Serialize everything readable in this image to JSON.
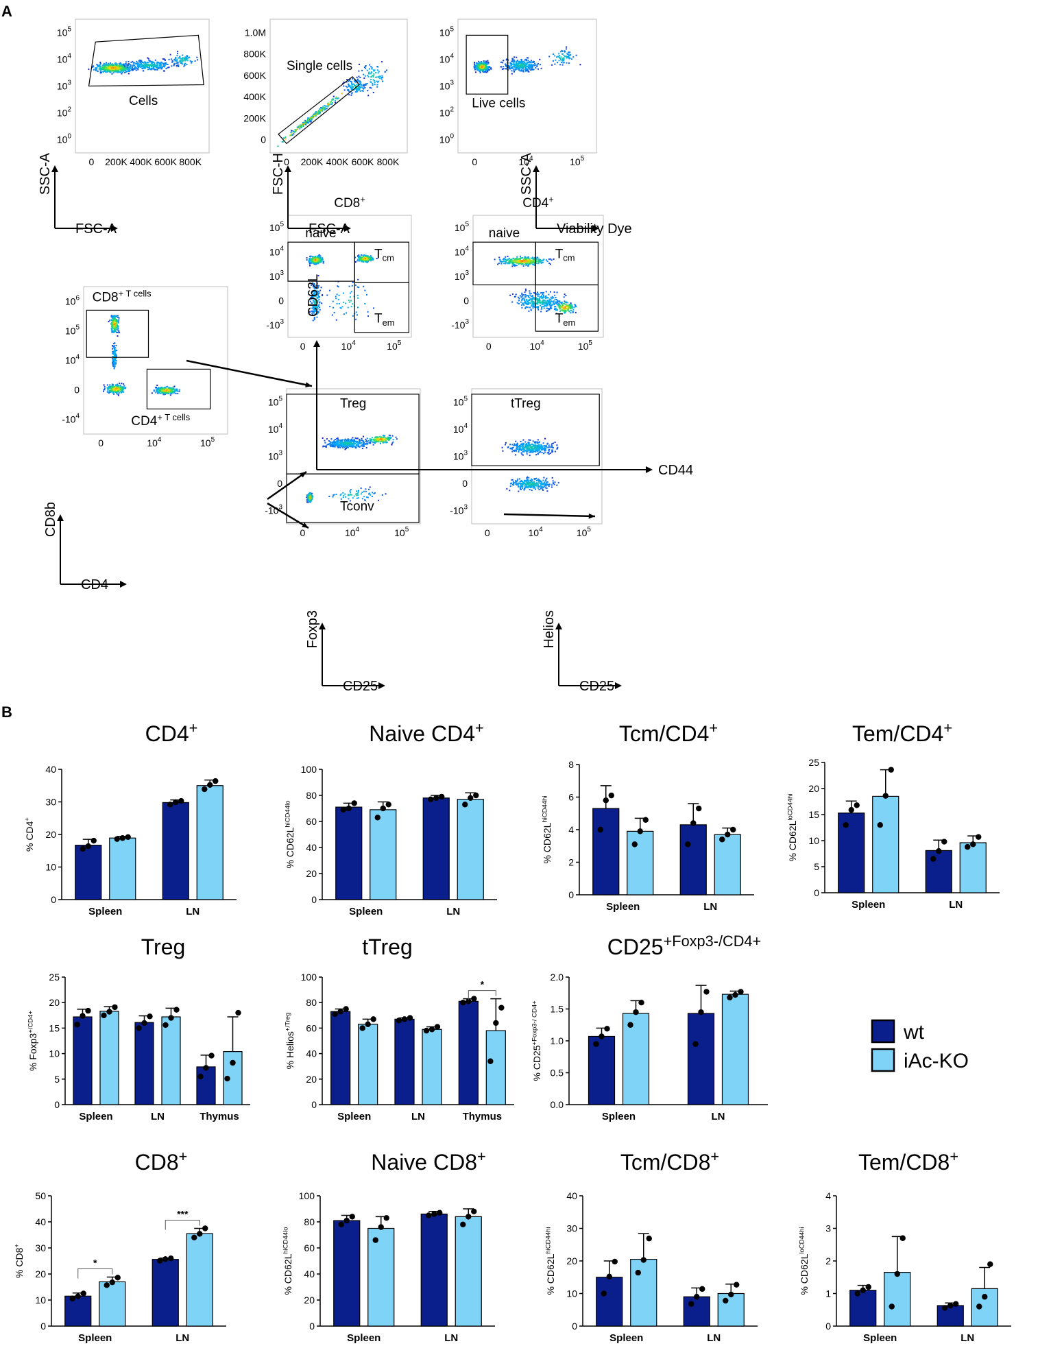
{
  "panel_labels": {
    "a": "A",
    "b": "B"
  },
  "colors": {
    "wt": "#0A1E8C",
    "ko": "#7FD3F7",
    "ink": "#000000",
    "gate": "#000000"
  },
  "flow": {
    "plots": [
      {
        "id": "cells",
        "ylabel": "SSC-A",
        "xlabel": "FSC-A",
        "yticks": [
          "10^5",
          "10^4",
          "10^3",
          "10^2",
          "10^0"
        ],
        "xticks": [
          "0",
          "200K",
          "400K",
          "600K",
          "800K"
        ],
        "gates": [
          {
            "label": "Cells"
          }
        ]
      },
      {
        "id": "single",
        "ylabel": "FSC-H",
        "xlabel": "FSC-A",
        "yticks": [
          "1.0M",
          "800K",
          "600K",
          "400K",
          "200K",
          "0"
        ],
        "xticks": [
          "0",
          "200K",
          "400K",
          "600K",
          "800K"
        ],
        "gates": [
          {
            "label": "Single cells"
          }
        ]
      },
      {
        "id": "live",
        "ylabel": "SSC-A",
        "xlabel": "Viability Dye",
        "yticks": [
          "10^5",
          "10^4",
          "10^3",
          "10^2",
          "10^0"
        ],
        "xticks": [
          "0",
          "10^4",
          "10^5"
        ],
        "gates": [
          {
            "label": "Live cells"
          }
        ]
      },
      {
        "id": "cd8cd4",
        "ylabel": "CD8b",
        "xlabel": "CD4",
        "yticks": [
          "10^6",
          "10^5",
          "10^4",
          "0",
          "-10^4"
        ],
        "xticks": [
          "0",
          "10^4",
          "10^5"
        ],
        "gates": [
          {
            "label": "CD8^+ T cells"
          },
          {
            "label": "CD4^+ T cells"
          }
        ]
      },
      {
        "id": "cd8mem",
        "title": "CD8^+",
        "ylabel": "CD62L",
        "xlabel": "",
        "yticks": [
          "10^5",
          "10^4",
          "10^3",
          "0",
          "-10^3"
        ],
        "xticks": [
          "0",
          "10^4",
          "10^5"
        ],
        "gates": [
          {
            "label": "naive"
          },
          {
            "label": "T_cm"
          },
          {
            "label": "T_em"
          }
        ]
      },
      {
        "id": "cd4mem",
        "title": "CD4^+",
        "ylabel": "",
        "xlabel": "CD44",
        "yticks": [
          "10^5",
          "10^4",
          "10^3",
          "0",
          "-10^3"
        ],
        "xticks": [
          "0",
          "10^4",
          "10^5"
        ],
        "gates": [
          {
            "label": "naive"
          },
          {
            "label": "T_cm"
          },
          {
            "label": "T_em"
          }
        ]
      },
      {
        "id": "treg",
        "ylabel": "Foxp3",
        "xlabel": "CD25",
        "yticks": [
          "10^5",
          "10^4",
          "10^3",
          "0",
          "-10^3"
        ],
        "xticks": [
          "0",
          "10^4",
          "10^5"
        ],
        "gates": [
          {
            "label": "Treg"
          },
          {
            "label": "Tconv"
          }
        ]
      },
      {
        "id": "ttreg",
        "ylabel": "Helios",
        "xlabel": "CD25",
        "yticks": [
          "10^5",
          "10^4",
          "10^3",
          "0",
          "-10^3"
        ],
        "xticks": [
          "0",
          "10^4",
          "10^5"
        ],
        "gates": [
          {
            "label": "tTreg"
          }
        ]
      }
    ]
  },
  "legend": [
    {
      "label": "wt",
      "color": "#0A1E8C"
    },
    {
      "label": "iAc-KO",
      "color": "#7FD3F7"
    }
  ],
  "chart_data": [
    {
      "type": "bar",
      "title": "CD4^+",
      "ylabel": "% CD4^+",
      "ylim": [
        0,
        40
      ],
      "ticks": [
        0,
        10,
        20,
        30,
        40
      ],
      "categories": [
        "Spleen",
        "LN"
      ],
      "series": [
        {
          "name": "wt",
          "values": [
            16.7,
            29.8
          ],
          "sd": [
            1.8,
            0.8
          ],
          "points": [
            [
              15.6,
              16.4,
              18.1
            ],
            [
              29.2,
              29.9,
              30.3
            ]
          ]
        },
        {
          "name": "iAc-KO",
          "values": [
            18.9,
            35.0
          ],
          "sd": [
            0.5,
            1.7
          ],
          "points": [
            [
              18.6,
              18.9,
              19.2
            ],
            [
              33.9,
              35.2,
              36.4
            ]
          ]
        }
      ],
      "sig": []
    },
    {
      "type": "bar",
      "title": "Naive CD4^+",
      "ylabel": "% CD62L^hiCD44^lo",
      "ylim": [
        0,
        100
      ],
      "ticks": [
        0,
        20,
        40,
        60,
        80,
        100
      ],
      "categories": [
        "Spleen",
        "LN"
      ],
      "series": [
        {
          "name": "wt",
          "values": [
            71,
            78
          ],
          "sd": [
            3,
            2
          ],
          "points": [
            [
              69,
              70,
              74
            ],
            [
              77,
              78,
              79
            ]
          ]
        },
        {
          "name": "iAc-KO",
          "values": [
            69,
            77
          ],
          "sd": [
            6,
            5
          ],
          "points": [
            [
              63,
              70,
              73
            ],
            [
              73,
              78,
              80
            ]
          ]
        }
      ],
      "sig": []
    },
    {
      "type": "bar",
      "title": "Tcm/CD4^+",
      "ylabel": "% CD62L^hiCD44^hi",
      "ylim": [
        0,
        8
      ],
      "ticks": [
        0,
        2,
        4,
        6,
        8
      ],
      "categories": [
        "Spleen",
        "LN"
      ],
      "series": [
        {
          "name": "wt",
          "values": [
            5.3,
            4.3
          ],
          "sd": [
            1.4,
            1.3
          ],
          "points": [
            [
              4.0,
              5.8,
              6.1
            ],
            [
              3.1,
              4.4,
              5.3
            ]
          ]
        },
        {
          "name": "iAc-KO",
          "values": [
            3.9,
            3.7
          ],
          "sd": [
            0.8,
            0.4
          ],
          "points": [
            [
              3.1,
              3.9,
              4.6
            ],
            [
              3.4,
              3.7,
              4.0
            ]
          ]
        }
      ],
      "sig": []
    },
    {
      "type": "bar",
      "title": "Tem/CD4^+",
      "ylabel": "% CD62L^loCD44^hi",
      "ylim": [
        0,
        25
      ],
      "ticks": [
        0,
        5,
        10,
        15,
        20,
        25
      ],
      "categories": [
        "Spleen",
        "LN"
      ],
      "series": [
        {
          "name": "wt",
          "values": [
            15.3,
            8.1
          ],
          "sd": [
            2.3,
            2.0
          ],
          "points": [
            [
              13.0,
              15.9,
              16.8
            ],
            [
              6.5,
              8.0,
              9.8
            ]
          ]
        },
        {
          "name": "iAc-KO",
          "values": [
            18.5,
            9.6
          ],
          "sd": [
            5.1,
            1.3
          ],
          "points": [
            [
              13.0,
              18.6,
              23.6
            ],
            [
              8.8,
              9.3,
              10.7
            ]
          ]
        }
      ],
      "sig": []
    },
    {
      "type": "bar",
      "title": "Treg",
      "ylabel": "% Foxp3^+/CD4^+",
      "ylim": [
        0,
        25
      ],
      "ticks": [
        0,
        5,
        10,
        15,
        20,
        25
      ],
      "categories": [
        "Spleen",
        "LN",
        "Thymus"
      ],
      "series": [
        {
          "name": "wt",
          "values": [
            17.2,
            16.1,
            7.4
          ],
          "sd": [
            1.5,
            1.3,
            2.3
          ],
          "points": [
            [
              15.7,
              17.4,
              18.4
            ],
            [
              15.0,
              16.0,
              17.3
            ],
            [
              5.5,
              7.2,
              9.6
            ]
          ]
        },
        {
          "name": "iAc-KO",
          "values": [
            18.3,
            17.2,
            10.4
          ],
          "sd": [
            0.9,
            1.7,
            6.8
          ],
          "points": [
            [
              17.5,
              18.2,
              19.1
            ],
            [
              15.6,
              17.0,
              18.6
            ],
            [
              5.1,
              8.2,
              18.0
            ]
          ]
        }
      ],
      "sig": []
    },
    {
      "type": "bar",
      "title": "tTreg",
      "ylabel": "% Helios^+/Treg",
      "ylim": [
        0,
        100
      ],
      "ticks": [
        0,
        20,
        40,
        60,
        80,
        100
      ],
      "categories": [
        "Spleen",
        "LN",
        "Thymus"
      ],
      "series": [
        {
          "name": "wt",
          "values": [
            73,
            67,
            81
          ],
          "sd": [
            2,
            1,
            2
          ],
          "points": [
            [
              71,
              73,
              75
            ],
            [
              66,
              67,
              68
            ],
            [
              80,
              81,
              83
            ]
          ]
        },
        {
          "name": "iAc-KO",
          "values": [
            63,
            59,
            58
          ],
          "sd": [
            4,
            2,
            25
          ],
          "points": [
            [
              60,
              63,
              67
            ],
            [
              58,
              59,
              61
            ],
            [
              34,
              64,
              76
            ]
          ]
        }
      ],
      "sig": [
        {
          "group": 2,
          "label": "*"
        }
      ]
    },
    {
      "type": "bar",
      "title": "CD25^+Foxp3^-/CD4^+",
      "ylabel": "% CD25^+Foxp3^-/ CD4^+",
      "ylim": [
        0,
        2.0
      ],
      "ticks": [
        "0.0",
        "0.5",
        "1.0",
        "1.5",
        "2.0"
      ],
      "categories": [
        "Spleen",
        "LN"
      ],
      "series": [
        {
          "name": "wt",
          "values": [
            1.07,
            1.43
          ],
          "sd": [
            0.13,
            0.44
          ],
          "points": [
            [
              0.95,
              1.07,
              1.19
            ],
            [
              0.95,
              1.45,
              1.77
            ]
          ]
        },
        {
          "name": "iAc-KO",
          "values": [
            1.43,
            1.73
          ],
          "sd": [
            0.2,
            0.05
          ],
          "points": [
            [
              1.25,
              1.45,
              1.6
            ],
            [
              1.68,
              1.72,
              1.77
            ]
          ]
        }
      ],
      "sig": []
    },
    {
      "type": "bar",
      "title": "CD8^+",
      "ylabel": "% CD8^+",
      "ylim": [
        0,
        50
      ],
      "ticks": [
        0,
        10,
        20,
        30,
        40,
        50
      ],
      "categories": [
        "Spleen",
        "LN"
      ],
      "series": [
        {
          "name": "wt",
          "values": [
            11.5,
            25.6
          ],
          "sd": [
            1.2,
            0.5
          ],
          "points": [
            [
              10.6,
              11.4,
              12.5
            ],
            [
              25.1,
              25.7,
              26.0
            ]
          ]
        },
        {
          "name": "iAc-KO",
          "values": [
            17.0,
            35.5
          ],
          "sd": [
            1.8,
            2.0
          ],
          "points": [
            [
              15.7,
              16.8,
              18.6
            ],
            [
              34.0,
              35.4,
              37.5
            ]
          ]
        }
      ],
      "sig": [
        {
          "group": 0,
          "label": "*"
        },
        {
          "group": 1,
          "label": "***"
        }
      ]
    },
    {
      "type": "bar",
      "title": "Naive CD8^+",
      "ylabel": "% CD62L^hiCD44^lo",
      "ylim": [
        0,
        100
      ],
      "ticks": [
        0,
        20,
        40,
        60,
        80,
        100
      ],
      "categories": [
        "Spleen",
        "LN"
      ],
      "series": [
        {
          "name": "wt",
          "values": [
            81,
            86
          ],
          "sd": [
            4,
            2
          ],
          "points": [
            [
              78,
              81,
              84
            ],
            [
              85,
              86,
              87
            ]
          ]
        },
        {
          "name": "iAc-KO",
          "values": [
            75,
            84
          ],
          "sd": [
            9,
            6
          ],
          "points": [
            [
              66,
              76,
              83
            ],
            [
              78,
              84,
              88
            ]
          ]
        }
      ],
      "sig": []
    },
    {
      "type": "bar",
      "title": "Tcm/CD8^+",
      "ylabel": "% CD62L^hiCD44^hi",
      "ylim": [
        0,
        40
      ],
      "ticks": [
        0,
        10,
        20,
        30,
        40
      ],
      "categories": [
        "Spleen",
        "LN"
      ],
      "series": [
        {
          "name": "wt",
          "values": [
            15.0,
            9.0
          ],
          "sd": [
            5.0,
            2.7
          ],
          "points": [
            [
              10.0,
              15.2,
              19.8
            ],
            [
              6.8,
              9.0,
              11.4
            ]
          ]
        },
        {
          "name": "iAc-KO",
          "values": [
            20.5,
            10.0
          ],
          "sd": [
            7.9,
            2.9
          ],
          "points": [
            [
              16.4,
              20.3,
              26.9
            ],
            [
              7.8,
              9.7,
              12.7
            ]
          ]
        }
      ],
      "sig": []
    },
    {
      "type": "bar",
      "title": "Tem/CD8^+",
      "ylabel": "% CD62L^loCD44^hi",
      "ylim": [
        0,
        4
      ],
      "ticks": [
        0,
        1,
        2,
        3,
        4
      ],
      "categories": [
        "Spleen",
        "LN"
      ],
      "series": [
        {
          "name": "wt",
          "values": [
            1.1,
            0.63
          ],
          "sd": [
            0.15,
            0.08
          ],
          "points": [
            [
              1.0,
              1.1,
              1.2
            ],
            [
              0.56,
              0.63,
              0.68
            ]
          ]
        },
        {
          "name": "iAc-KO",
          "values": [
            1.65,
            1.15
          ],
          "sd": [
            1.1,
            0.65
          ],
          "points": [
            [
              0.6,
              1.6,
              2.7
            ],
            [
              0.6,
              0.9,
              1.9
            ]
          ]
        }
      ],
      "sig": []
    }
  ]
}
